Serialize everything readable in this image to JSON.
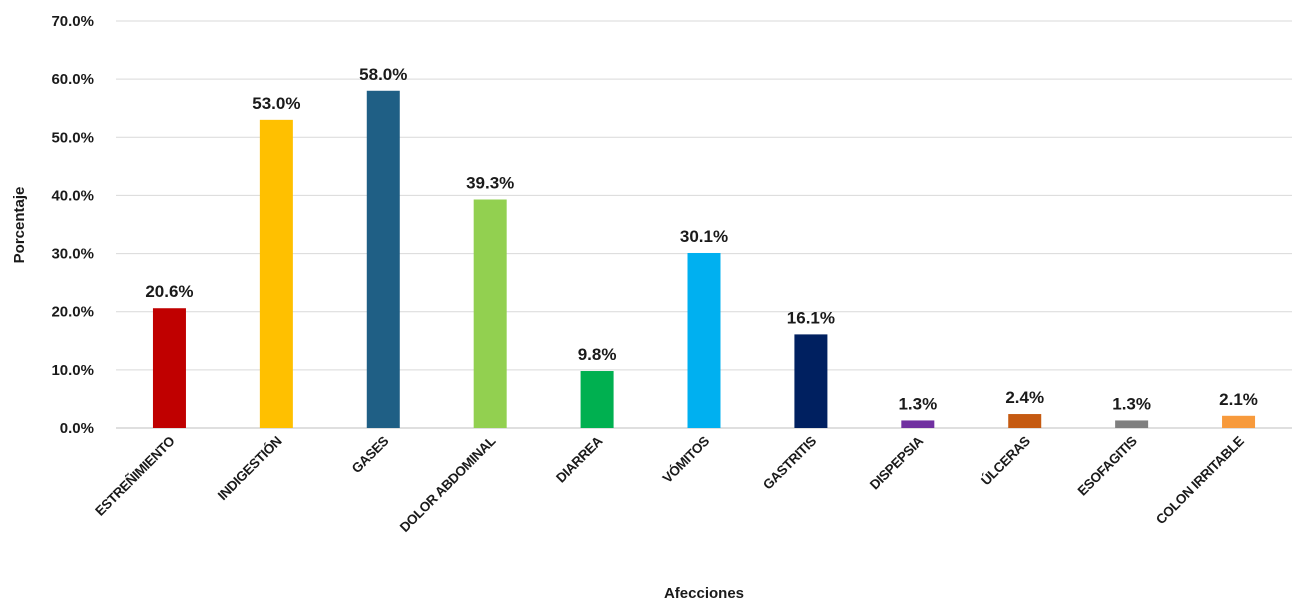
{
  "chart_data": {
    "type": "bar",
    "title": "",
    "xlabel": "Afecciones",
    "ylabel": "Porcentaje",
    "ylim": [
      0,
      70
    ],
    "yticks": [
      0,
      10,
      20,
      30,
      40,
      50,
      60,
      70
    ],
    "ytick_labels": [
      "0.0%",
      "10.0%",
      "20.0%",
      "30.0%",
      "40.0%",
      "50.0%",
      "60.0%",
      "70.0%"
    ],
    "grid": true,
    "legend": "none",
    "categories": [
      "ESTREÑIMIENTO",
      "INDIGESTIÓN",
      "GASES",
      "DOLOR ABDOMINAL",
      "DIARREA",
      "VÓMITOS",
      "GASTRITIS",
      "DISPEPSIA",
      "ÚLCERAS",
      "ESOFAGITIS",
      "COLON IRRITABLE"
    ],
    "values": [
      20.6,
      53.0,
      58.0,
      39.3,
      9.8,
      30.1,
      16.1,
      1.3,
      2.4,
      1.3,
      2.1
    ],
    "data_labels": [
      "20.6%",
      "53.0%",
      "58.0%",
      "39.3%",
      "9.8%",
      "30.1%",
      "16.1%",
      "1.3%",
      "2.4%",
      "1.3%",
      "2.1%"
    ],
    "colors": [
      "#c00000",
      "#ffc000",
      "#1f5f85",
      "#92d050",
      "#00b050",
      "#00b0f0",
      "#002060",
      "#7030a0",
      "#c55a11",
      "#7f7f7f",
      "#f79a3c"
    ]
  }
}
